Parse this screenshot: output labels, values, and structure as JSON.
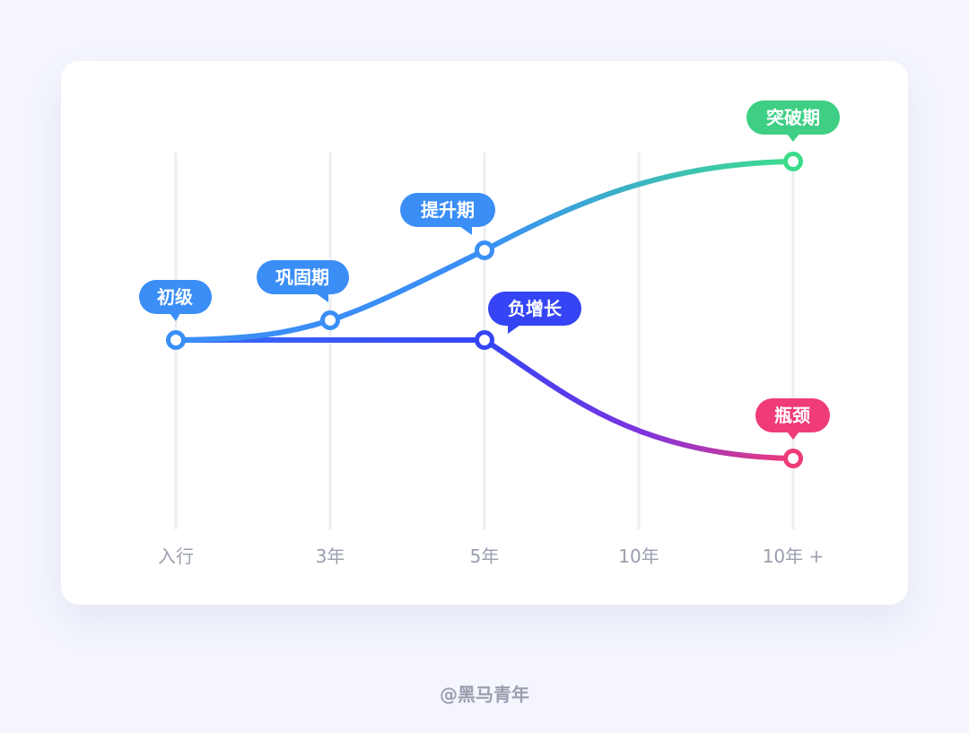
{
  "axis": [
    "入行",
    "3年",
    "5年",
    "10年",
    "10年 +"
  ],
  "stages": {
    "junior": "初级",
    "consolidate": "巩固期",
    "promote": "提升期",
    "breakthrough": "突破期",
    "negative": "负增长",
    "bottleneck": "瓶颈"
  },
  "colors": {
    "blue": "#3a8ef6",
    "green": "#3ddc8c",
    "indigo": "#3545f5",
    "pink": "#ef3b78"
  },
  "credit": "@黑马青年"
}
